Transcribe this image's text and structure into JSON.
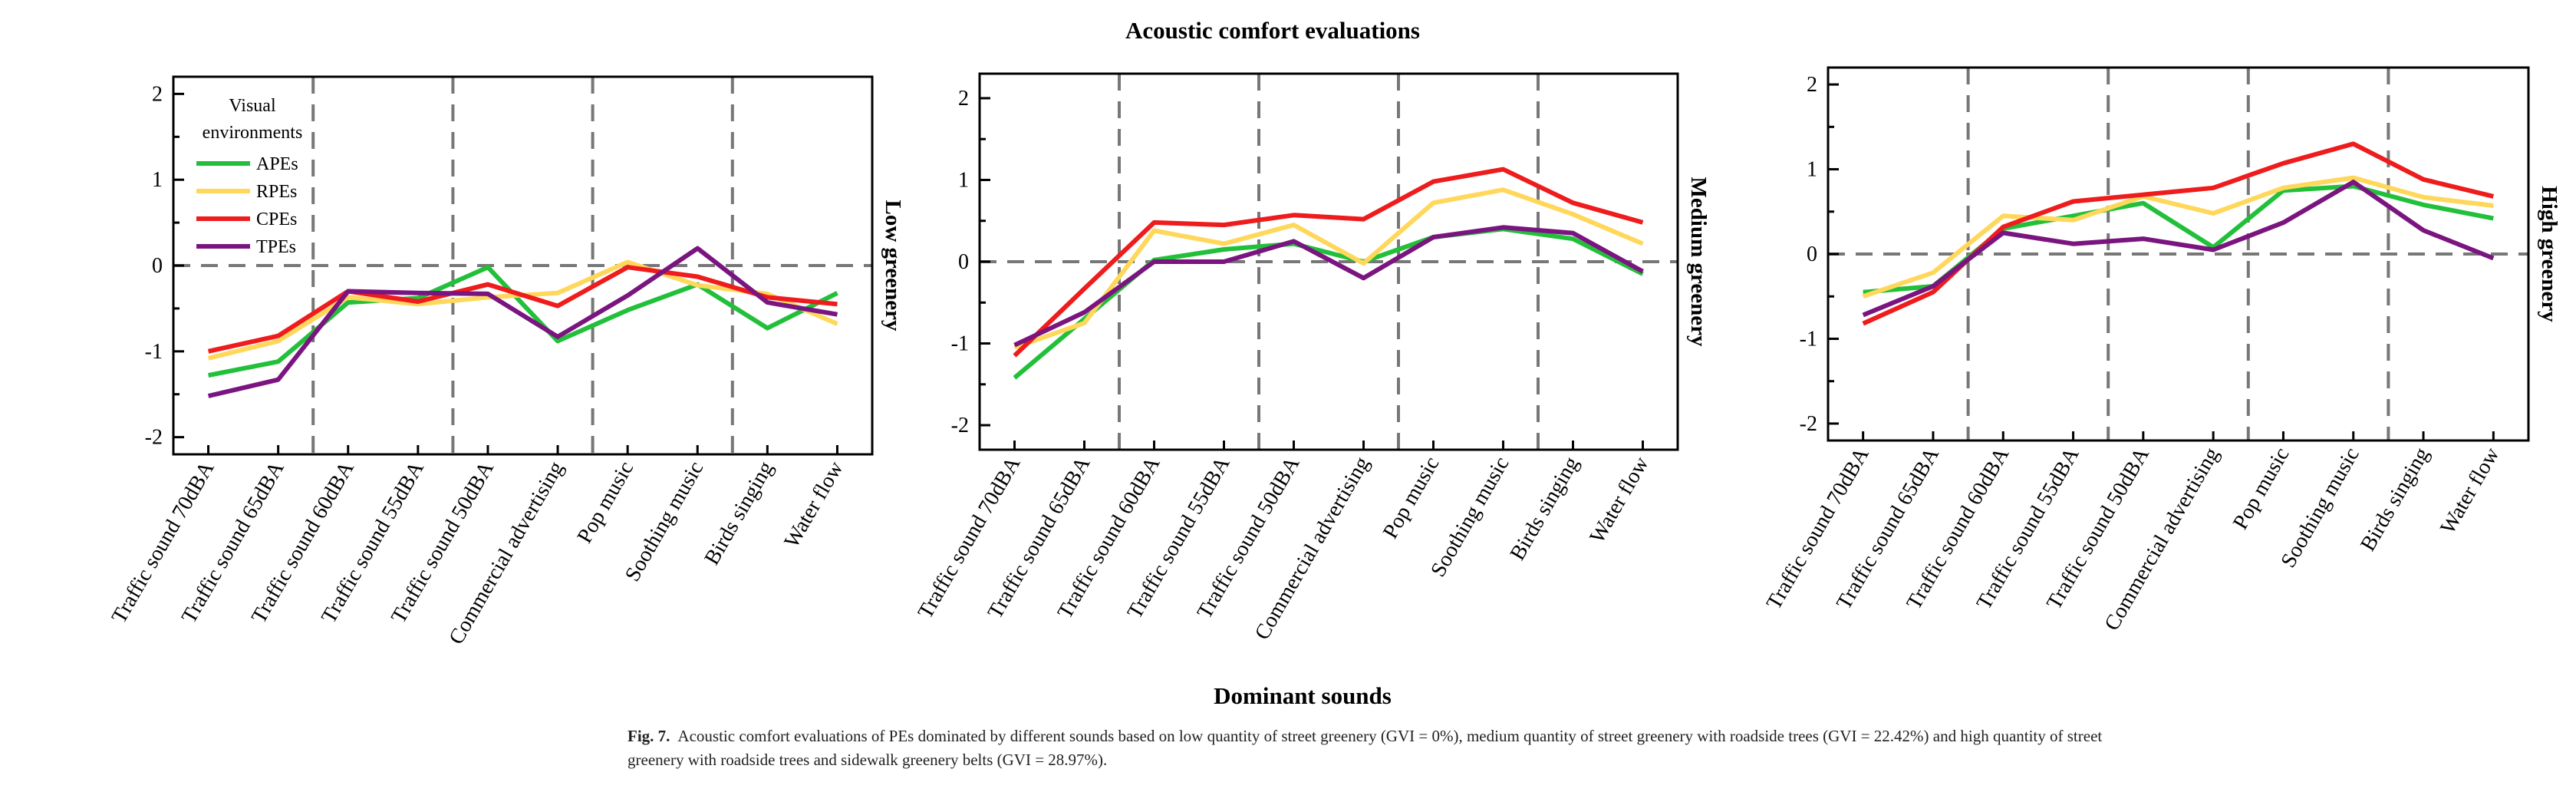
{
  "figure": {
    "title": "Acoustic comfort evaluations",
    "xlabel": "Dominant sounds",
    "legend_title": "Visual environments"
  },
  "caption": {
    "label": "Fig. 7.",
    "text": "Acoustic comfort evaluations of PEs dominated by different sounds based on low quantity of street greenery (GVI = 0%), medium quantity of street greenery with roadside trees (GVI = 22.42%) and high quantity of street greenery with roadside trees and sidewalk greenery belts (GVI = 28.97%)."
  },
  "colors": {
    "APEs": "#22c03a",
    "RPEs": "#ffd75a",
    "CPEs": "#ee1c1c",
    "TPEs": "#7a1580"
  },
  "chart_data": [
    {
      "type": "line",
      "panel_label": "Low greenery",
      "categories": [
        "Traffic sound 70dBA",
        "Traffic sound 65dBA",
        "Traffic sound 60dBA",
        "Traffic sound 55dBA",
        "Traffic sound 50dBA",
        "Commercial advertising",
        "Pop music",
        "Soothing music",
        "Birds singing",
        "Water flow"
      ],
      "ylim": [
        -2.2,
        2.2
      ],
      "yticks": [
        -2,
        -1,
        0,
        1,
        2
      ],
      "legend": "top-left",
      "series": [
        {
          "name": "APEs",
          "values": [
            -1.28,
            -1.12,
            -0.43,
            -0.38,
            -0.02,
            -0.88,
            -0.52,
            -0.22,
            -0.73,
            -0.32
          ]
        },
        {
          "name": "RPEs",
          "values": [
            -1.08,
            -0.88,
            -0.37,
            -0.45,
            -0.37,
            -0.32,
            0.04,
            -0.23,
            -0.33,
            -0.68
          ]
        },
        {
          "name": "CPEs",
          "values": [
            -1.0,
            -0.82,
            -0.3,
            -0.42,
            -0.22,
            -0.47,
            -0.02,
            -0.13,
            -0.37,
            -0.45
          ]
        },
        {
          "name": "TPEs",
          "values": [
            -1.52,
            -1.33,
            -0.3,
            -0.32,
            -0.33,
            -0.83,
            -0.35,
            0.2,
            -0.43,
            -0.57
          ]
        }
      ]
    },
    {
      "type": "line",
      "panel_label": "Medium greenery",
      "categories": [
        "Traffic sound 70dBA",
        "Traffic sound 65dBA",
        "Traffic sound 60dBA",
        "Traffic sound 55dBA",
        "Traffic sound 50dBA",
        "Commercial advertising",
        "Pop music",
        "Soothing music",
        "Birds singing",
        "Water flow"
      ],
      "ylim": [
        -2.3,
        2.3
      ],
      "yticks": [
        -2,
        -1,
        0,
        1,
        2
      ],
      "series": [
        {
          "name": "APEs",
          "values": [
            -1.42,
            -0.7,
            0.02,
            0.15,
            0.22,
            0.0,
            0.3,
            0.4,
            0.28,
            -0.15
          ]
        },
        {
          "name": "RPEs",
          "values": [
            -1.05,
            -0.75,
            0.38,
            0.22,
            0.45,
            -0.02,
            0.72,
            0.88,
            0.58,
            0.22
          ]
        },
        {
          "name": "CPEs",
          "values": [
            -1.15,
            -0.33,
            0.48,
            0.45,
            0.57,
            0.52,
            0.98,
            1.13,
            0.72,
            0.48
          ]
        },
        {
          "name": "TPEs",
          "values": [
            -1.02,
            -0.62,
            0.0,
            0.0,
            0.25,
            -0.2,
            0.3,
            0.42,
            0.35,
            -0.12
          ]
        }
      ]
    },
    {
      "type": "line",
      "panel_label": "High greenery",
      "categories": [
        "Traffic sound 70dBA",
        "Traffic sound 65dBA",
        "Traffic sound 60dBA",
        "Traffic sound 55dBA",
        "Traffic sound 50dBA",
        "Commercial advertising",
        "Pop music",
        "Soothing music",
        "Birds singing",
        "Water flow"
      ],
      "ylim": [
        -2.2,
        2.2
      ],
      "yticks": [
        -2,
        -1,
        0,
        1,
        2
      ],
      "series": [
        {
          "name": "APEs",
          "values": [
            -0.45,
            -0.38,
            0.3,
            0.45,
            0.6,
            0.08,
            0.75,
            0.8,
            0.58,
            0.42
          ]
        },
        {
          "name": "RPEs",
          "values": [
            -0.5,
            -0.22,
            0.45,
            0.4,
            0.68,
            0.48,
            0.78,
            0.9,
            0.67,
            0.57
          ]
        },
        {
          "name": "CPEs",
          "values": [
            -0.82,
            -0.45,
            0.32,
            0.62,
            0.7,
            0.78,
            1.07,
            1.3,
            0.88,
            0.68
          ]
        },
        {
          "name": "TPEs",
          "values": [
            -0.72,
            -0.38,
            0.25,
            0.12,
            0.18,
            0.05,
            0.37,
            0.85,
            0.28,
            -0.05
          ]
        }
      ]
    }
  ]
}
